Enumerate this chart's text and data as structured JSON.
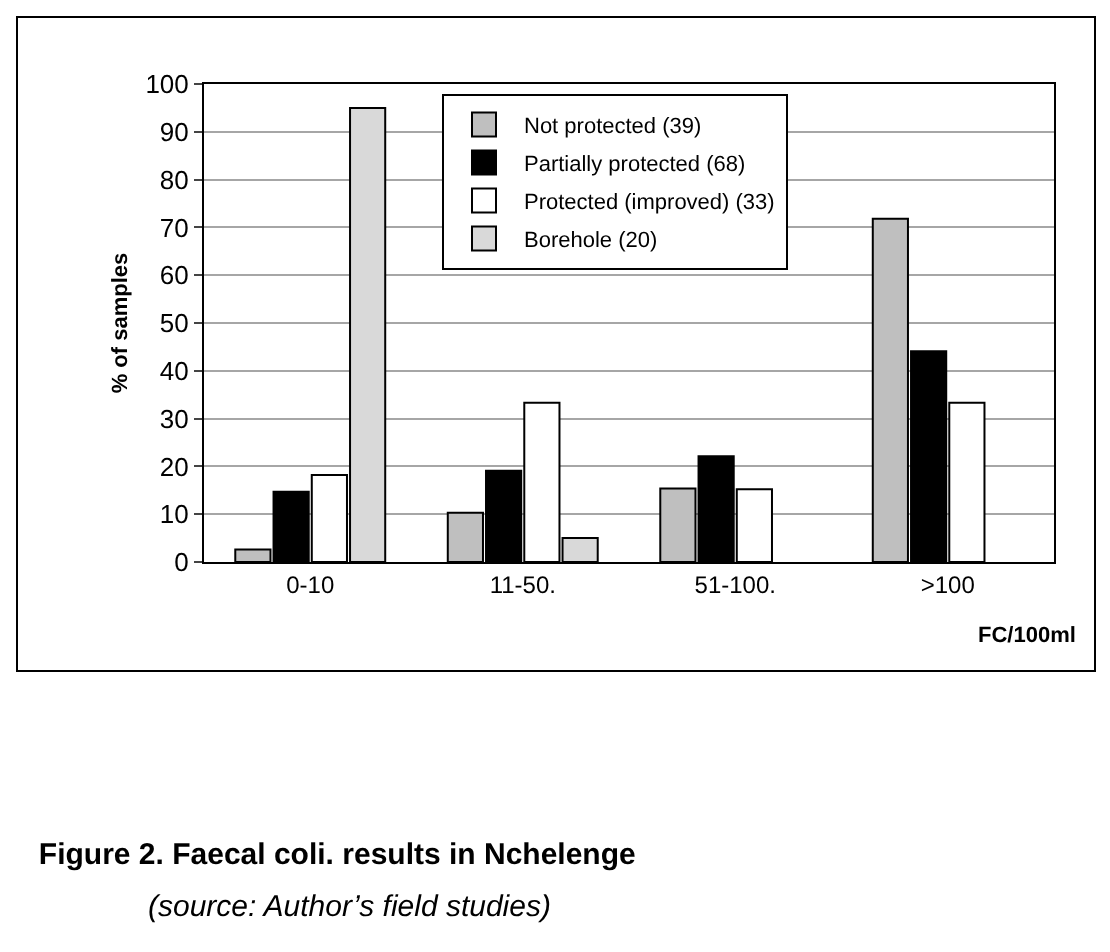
{
  "chart_data": {
    "type": "bar",
    "title": "Figure 2. Faecal coli. results in Nchelenge",
    "subtitle": "(source: Author’s field studies)",
    "xlabel": "FC/100ml",
    "ylabel": "% of samples",
    "categories": [
      "0-10",
      "11-50.",
      "51-100.",
      ">100"
    ],
    "series": [
      {
        "name": "Not protected (39)",
        "color": "#bfbfbf",
        "values": [
          2.6,
          10.3,
          15.4,
          71.8
        ]
      },
      {
        "name": "Partially protected (68)",
        "color": "#000000",
        "values": [
          14.7,
          19.1,
          22.1,
          44.1
        ]
      },
      {
        "name": "Protected (improved) (33)",
        "color": "#ffffff",
        "values": [
          18.2,
          33.3,
          15.2,
          33.3
        ]
      },
      {
        "name": "Borehole (20)",
        "color": "#d9d9d9",
        "values": [
          95,
          5,
          0,
          0
        ]
      }
    ],
    "ylim": [
      0,
      100
    ],
    "yticks": [
      0,
      10,
      20,
      30,
      40,
      50,
      60,
      70,
      80,
      90,
      100
    ],
    "grid": "y",
    "legend": "top right"
  }
}
